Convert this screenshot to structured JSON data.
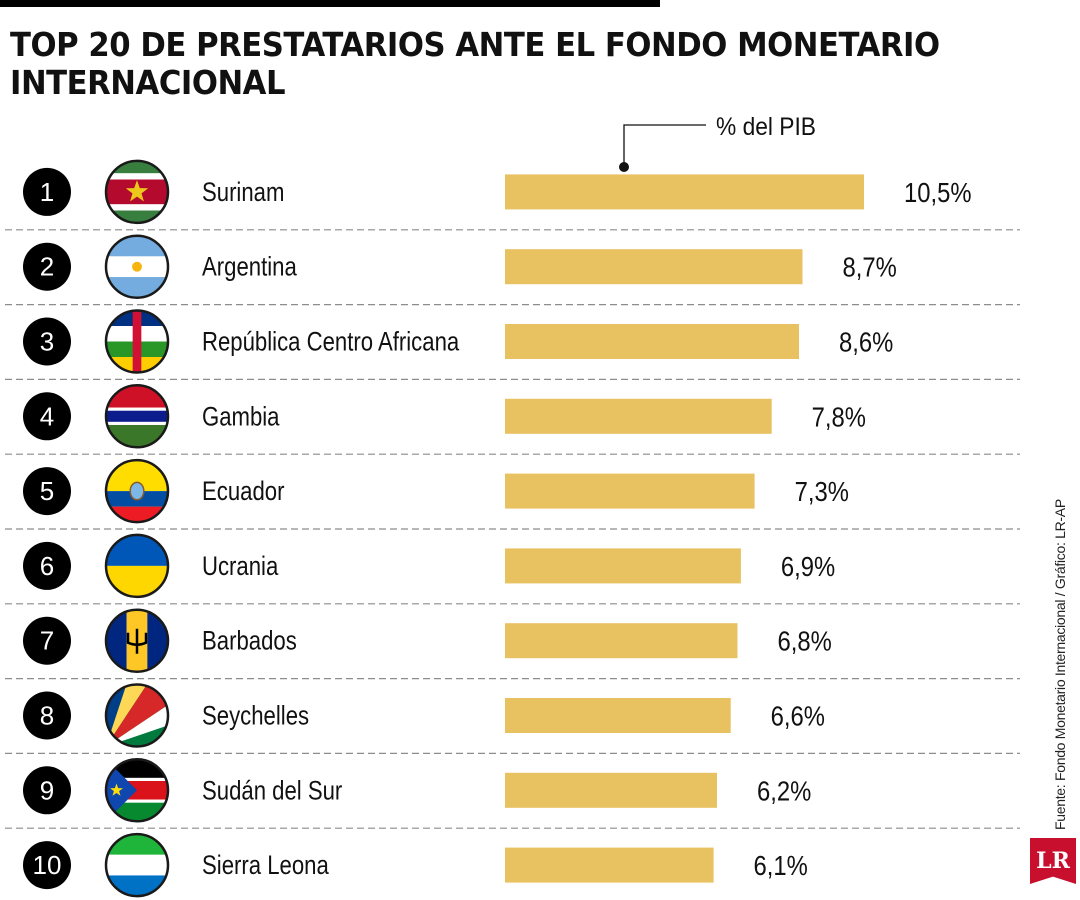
{
  "title": "TOP 20 DE PRESTATARIOS ANTE EL FONDO MONETARIO INTERNACIONAL",
  "source": "Fuente: Fondo Monetario Internacional / Gráfico: LR-AP",
  "logo": "LR",
  "chart_data": {
    "type": "bar",
    "orientation": "horizontal",
    "series_label": "% del PIB",
    "categories": [
      "Surinam",
      "Argentina",
      "República Centro Africana",
      "Gambia",
      "Ecuador",
      "Ucrania",
      "Barbados",
      "Seychelles",
      "Sudán del Sur",
      "Sierra Leona"
    ],
    "ranks": [
      "1",
      "2",
      "3",
      "4",
      "5",
      "6",
      "7",
      "8",
      "9",
      "10"
    ],
    "values": [
      10.5,
      8.7,
      8.6,
      7.8,
      7.3,
      6.9,
      6.8,
      6.6,
      6.2,
      6.1
    ],
    "value_labels": [
      "10,5%",
      "8,7%",
      "8,6%",
      "7,8%",
      "7,3%",
      "6,9%",
      "6,8%",
      "6,6%",
      "6,2%",
      "6,1%"
    ],
    "flags": [
      "surinam-flag-icon",
      "argentina-flag-icon",
      "central-african-republic-flag-icon",
      "gambia-flag-icon",
      "ecuador-flag-icon",
      "ukraine-flag-icon",
      "barbados-flag-icon",
      "seychelles-flag-icon",
      "south-sudan-flag-icon",
      "sierra-leone-flag-icon"
    ],
    "bar_color": "#e8c160",
    "xlim": [
      0,
      10.5
    ]
  }
}
